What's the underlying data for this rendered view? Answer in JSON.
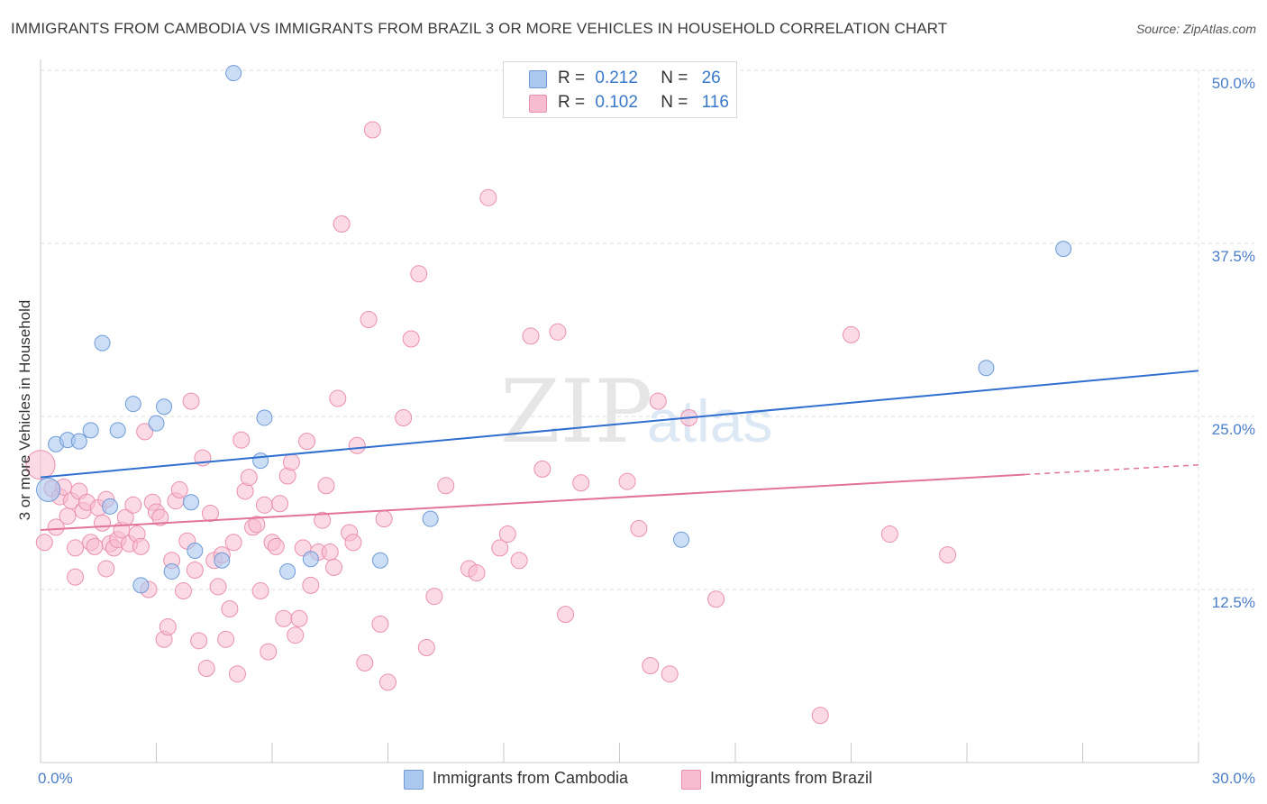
{
  "title": "IMMIGRANTS FROM CAMBODIA VS IMMIGRANTS FROM BRAZIL 3 OR MORE VEHICLES IN HOUSEHOLD CORRELATION CHART",
  "source": "Source: ZipAtlas.com",
  "watermark": {
    "zip": "ZIP",
    "atlas": "atlas"
  },
  "legend": {
    "r_label": "R =",
    "n_label": "N =",
    "rows": [
      {
        "r": "0.212",
        "n": "26"
      },
      {
        "r": "0.102",
        "n": "116"
      }
    ]
  },
  "chart_data": {
    "type": "scatter",
    "xlabel": "",
    "ylabel": "3 or more Vehicles in Household",
    "xlim": [
      0,
      30
    ],
    "ylim": [
      0,
      50
    ],
    "x_tick_labels": [
      "0.0%",
      "30.0%"
    ],
    "y_tick_labels": [
      "12.5%",
      "25.0%",
      "37.5%",
      "50.0%"
    ],
    "y_ticks": [
      12.5,
      25.0,
      37.5,
      50.0
    ],
    "grid": true,
    "legend_position": "top-center",
    "colors": {
      "cambodia_fill": "#aac8f0",
      "cambodia_stroke": "#6f9ad6",
      "cambodia_line": "#2f6fcf",
      "brazil_fill": "#f7bcd0",
      "brazil_stroke": "#e990ae",
      "brazil_line": "#e2739a",
      "axis_label": "#4a7ec8"
    },
    "series": [
      {
        "name": "Immigrants from Cambodia",
        "r": 0.212,
        "n": 26,
        "trend": {
          "x": [
            0,
            30
          ],
          "y": [
            20.6,
            28.3
          ]
        },
        "points": [
          [
            0.2,
            19.7
          ],
          [
            0.4,
            23.0
          ],
          [
            0.7,
            23.3
          ],
          [
            1.0,
            23.2
          ],
          [
            1.3,
            24.0
          ],
          [
            1.6,
            30.3
          ],
          [
            1.8,
            18.5
          ],
          [
            2.0,
            24.0
          ],
          [
            2.4,
            25.9
          ],
          [
            2.6,
            12.8
          ],
          [
            3.0,
            24.5
          ],
          [
            3.2,
            25.7
          ],
          [
            3.4,
            13.8
          ],
          [
            3.9,
            18.8
          ],
          [
            4.0,
            15.3
          ],
          [
            4.7,
            14.6
          ],
          [
            5.0,
            49.8
          ],
          [
            5.7,
            21.8
          ],
          [
            5.8,
            24.9
          ],
          [
            6.4,
            13.8
          ],
          [
            7.0,
            14.7
          ],
          [
            8.8,
            14.6
          ],
          [
            10.1,
            17.6
          ],
          [
            16.6,
            16.1
          ],
          [
            24.5,
            28.5
          ],
          [
            26.5,
            37.1
          ]
        ]
      },
      {
        "name": "Immigrants from Brazil",
        "r": 0.102,
        "n": 116,
        "trend": {
          "x": [
            0,
            25.5
          ],
          "y": [
            16.8,
            20.8
          ]
        },
        "trend_dashed": {
          "x": [
            25.5,
            30
          ],
          "y": [
            20.8,
            21.5
          ]
        },
        "points": [
          [
            0.0,
            21.5
          ],
          [
            0.1,
            15.9
          ],
          [
            0.3,
            19.8
          ],
          [
            0.4,
            17.0
          ],
          [
            0.5,
            19.2
          ],
          [
            0.6,
            19.9
          ],
          [
            0.7,
            17.8
          ],
          [
            0.8,
            18.9
          ],
          [
            0.9,
            15.5
          ],
          [
            0.9,
            13.4
          ],
          [
            1.0,
            19.6
          ],
          [
            1.1,
            18.2
          ],
          [
            1.2,
            18.8
          ],
          [
            1.3,
            15.9
          ],
          [
            1.4,
            15.6
          ],
          [
            1.5,
            18.4
          ],
          [
            1.6,
            17.3
          ],
          [
            1.7,
            19.0
          ],
          [
            1.7,
            14.0
          ],
          [
            1.8,
            15.8
          ],
          [
            1.9,
            15.5
          ],
          [
            2.0,
            16.1
          ],
          [
            2.1,
            16.8
          ],
          [
            2.2,
            17.7
          ],
          [
            2.3,
            15.8
          ],
          [
            2.4,
            18.6
          ],
          [
            2.5,
            16.5
          ],
          [
            2.6,
            15.6
          ],
          [
            2.7,
            23.9
          ],
          [
            2.8,
            12.5
          ],
          [
            2.9,
            18.8
          ],
          [
            3.0,
            18.1
          ],
          [
            3.1,
            17.7
          ],
          [
            3.2,
            8.9
          ],
          [
            3.3,
            9.8
          ],
          [
            3.4,
            14.6
          ],
          [
            3.5,
            18.9
          ],
          [
            3.6,
            19.7
          ],
          [
            3.7,
            12.4
          ],
          [
            3.8,
            16.0
          ],
          [
            3.9,
            26.1
          ],
          [
            4.0,
            13.9
          ],
          [
            4.1,
            8.8
          ],
          [
            4.2,
            22.0
          ],
          [
            4.3,
            6.8
          ],
          [
            4.4,
            18.0
          ],
          [
            4.5,
            14.6
          ],
          [
            4.6,
            12.7
          ],
          [
            4.7,
            15.0
          ],
          [
            4.8,
            8.9
          ],
          [
            4.9,
            11.1
          ],
          [
            5.0,
            15.9
          ],
          [
            5.1,
            6.4
          ],
          [
            5.2,
            23.3
          ],
          [
            5.3,
            19.6
          ],
          [
            5.4,
            20.6
          ],
          [
            5.5,
            17.0
          ],
          [
            5.6,
            17.2
          ],
          [
            5.7,
            12.4
          ],
          [
            5.8,
            18.6
          ],
          [
            5.9,
            8.0
          ],
          [
            6.0,
            15.9
          ],
          [
            6.1,
            15.6
          ],
          [
            6.2,
            18.7
          ],
          [
            6.3,
            10.4
          ],
          [
            6.4,
            20.7
          ],
          [
            6.5,
            21.7
          ],
          [
            6.6,
            9.2
          ],
          [
            6.7,
            10.4
          ],
          [
            6.8,
            15.5
          ],
          [
            6.9,
            23.2
          ],
          [
            7.0,
            12.8
          ],
          [
            7.2,
            15.2
          ],
          [
            7.3,
            17.5
          ],
          [
            7.4,
            20.0
          ],
          [
            7.5,
            15.2
          ],
          [
            7.6,
            14.1
          ],
          [
            7.7,
            26.3
          ],
          [
            7.8,
            38.9
          ],
          [
            8.0,
            16.6
          ],
          [
            8.1,
            15.9
          ],
          [
            8.2,
            22.9
          ],
          [
            8.4,
            7.2
          ],
          [
            8.5,
            32.0
          ],
          [
            8.6,
            45.7
          ],
          [
            8.8,
            10.0
          ],
          [
            8.9,
            17.6
          ],
          [
            9.0,
            5.8
          ],
          [
            9.4,
            24.9
          ],
          [
            9.6,
            30.6
          ],
          [
            9.8,
            35.3
          ],
          [
            10.0,
            8.3
          ],
          [
            10.2,
            12.0
          ],
          [
            10.5,
            20.0
          ],
          [
            11.1,
            14.0
          ],
          [
            11.3,
            13.7
          ],
          [
            11.6,
            40.8
          ],
          [
            11.9,
            15.5
          ],
          [
            12.1,
            16.5
          ],
          [
            12.4,
            14.6
          ],
          [
            12.7,
            30.8
          ],
          [
            13.0,
            21.2
          ],
          [
            13.4,
            31.1
          ],
          [
            13.6,
            10.7
          ],
          [
            14.0,
            20.2
          ],
          [
            15.2,
            20.3
          ],
          [
            15.5,
            16.9
          ],
          [
            15.8,
            7.0
          ],
          [
            16.0,
            26.1
          ],
          [
            16.3,
            6.4
          ],
          [
            16.8,
            24.9
          ],
          [
            17.5,
            11.8
          ],
          [
            20.2,
            3.4
          ],
          [
            21.0,
            30.9
          ],
          [
            22.0,
            16.5
          ],
          [
            23.5,
            15.0
          ]
        ]
      }
    ],
    "bottom_legend": [
      "Immigrants from Cambodia",
      "Immigrants from Brazil"
    ]
  }
}
